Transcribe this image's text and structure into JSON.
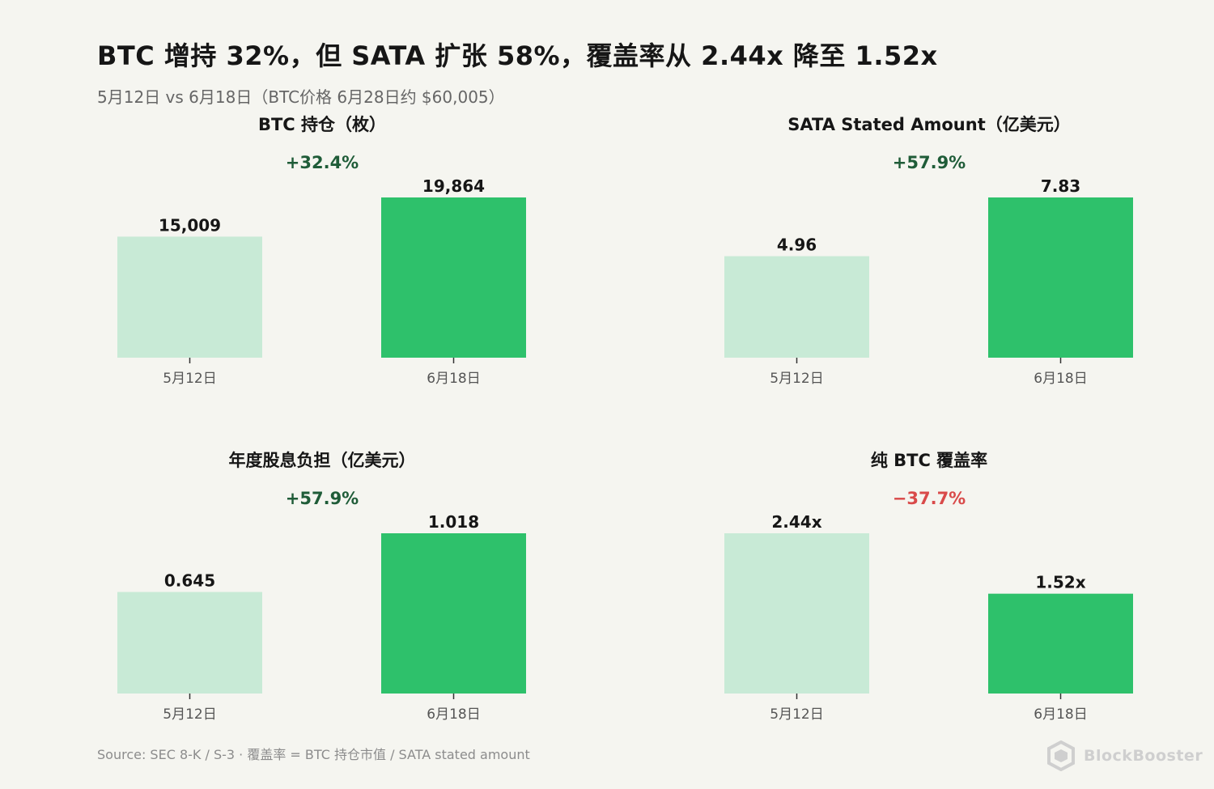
{
  "title": "BTC 增持 32%，但 SATA 扩张 58%，覆盖率从 2.44x 降至 1.52x",
  "subtitle": "5月12日 vs 6月18日（BTC价格 6月28日约 $60,005）",
  "source": "Source: SEC 8-K / S-3 · 覆盖率 = BTC 持仓市值 / SATA stated amount",
  "logo": {
    "text": "BlockBooster",
    "icon": "blockbooster-logo-icon"
  },
  "colors": {
    "background": "#f5f5f0",
    "bar_before": "#c8ead6",
    "bar_after": "#2ec16b",
    "positive": "#1f5c38",
    "negative": "#d94a4a"
  },
  "chart_data": [
    {
      "type": "bar",
      "title": "BTC 持仓（枚）",
      "categories": [
        "5月12日",
        "6月18日"
      ],
      "values": [
        15009,
        19864
      ],
      "value_labels": [
        "15,009",
        "19,864"
      ],
      "change": "+32.4%",
      "change_direction": "positive",
      "ylim": [
        0,
        19864
      ]
    },
    {
      "type": "bar",
      "title": "SATA Stated Amount（亿美元）",
      "categories": [
        "5月12日",
        "6月18日"
      ],
      "values": [
        4.96,
        7.83
      ],
      "value_labels": [
        "4.96",
        "7.83"
      ],
      "change": "+57.9%",
      "change_direction": "positive",
      "ylim": [
        0,
        7.83
      ]
    },
    {
      "type": "bar",
      "title": "年度股息负担（亿美元）",
      "categories": [
        "5月12日",
        "6月18日"
      ],
      "values": [
        0.645,
        1.018
      ],
      "value_labels": [
        "0.645",
        "1.018"
      ],
      "change": "+57.9%",
      "change_direction": "positive",
      "ylim": [
        0,
        1.018
      ]
    },
    {
      "type": "bar",
      "title": "纯 BTC 覆盖率",
      "categories": [
        "5月12日",
        "6月18日"
      ],
      "values": [
        2.44,
        1.52
      ],
      "value_labels": [
        "2.44x",
        "1.52x"
      ],
      "change": "−37.7%",
      "change_direction": "negative",
      "ylim": [
        0,
        2.44
      ]
    }
  ]
}
